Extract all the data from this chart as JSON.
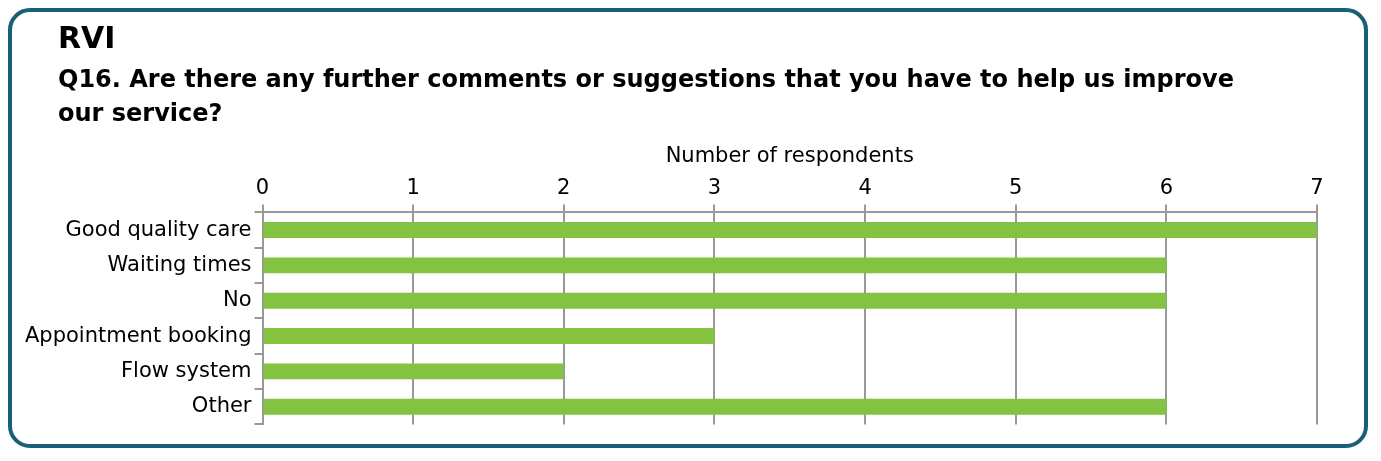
{
  "chart_data": {
    "type": "bar",
    "orientation": "horizontal",
    "title": "RVI",
    "subtitle": "Q16. Are there any further comments or suggestions that you have to help us improve our service?",
    "xlabel": "Number of respondents",
    "categories": [
      "Good quality care",
      "Waiting times",
      "No",
      "Appointment booking",
      "Flow system",
      "Other"
    ],
    "values": [
      7,
      6,
      6,
      3,
      2,
      6
    ],
    "color": "#84c341",
    "xlim": [
      0,
      7
    ],
    "xticks": [
      0,
      1,
      2,
      3,
      4,
      5,
      6,
      7
    ],
    "grid": "x",
    "legend": false
  }
}
